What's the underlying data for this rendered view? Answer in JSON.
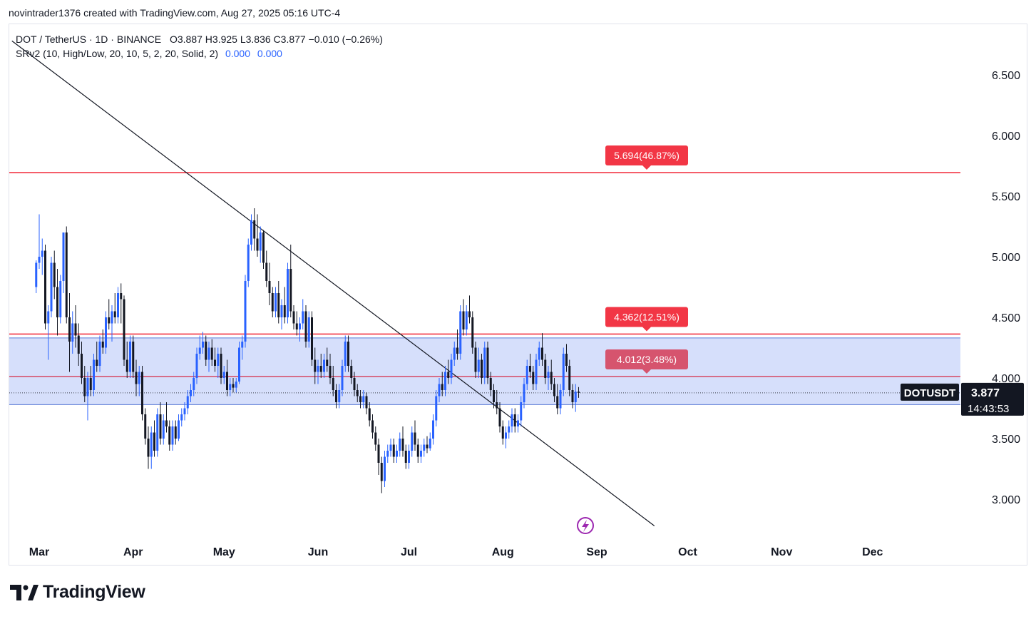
{
  "header": {
    "attribution": "novintrader1376 created with TradingView.com, Aug 27, 2025 05:16 UTC-4"
  },
  "legend": {
    "symbol_line": "DOT / TetherUS · 1D · BINANCE",
    "ohlc": "O3.887  H3.925  L3.836  C3.877  −0.010 (−0.26%)",
    "indicator": "SRv2 (10, High/Low, 20, 10, 5, 2, 20, Solid, 2)",
    "indicator_val1": "0.000",
    "indicator_val2": "0.000"
  },
  "brand": {
    "name": "TradingView"
  },
  "colors": {
    "up": "#2962ff",
    "down": "#131722",
    "resistance": "#f23645",
    "target_mid": "#d6546e",
    "zone_fill": "#d1dcfb",
    "zone_edge": "#5b7cd6",
    "trendline": "#131722",
    "price_tag": "#131722",
    "icon_purple": "#9c27b0"
  },
  "chart_data": {
    "type": "candlestick",
    "symbol": "DOTUSDT",
    "last_price": "3.877",
    "countdown": "14:43:53",
    "x_labels": [
      "Mar",
      "Apr",
      "May",
      "Jun",
      "Jul",
      "Aug",
      "Sep",
      "Oct",
      "Nov",
      "Dec"
    ],
    "y_ticks": [
      "3.000",
      "3.500",
      "4.000",
      "4.500",
      "5.000",
      "5.500",
      "6.000",
      "6.500"
    ],
    "ylim": [
      2.7,
      6.9
    ],
    "levels": [
      {
        "price": 5.694,
        "label": "5.694(46.87%)",
        "color": "#f23645"
      },
      {
        "price": 4.362,
        "label": "4.362(12.51%)",
        "color": "#f23645"
      },
      {
        "price": 4.012,
        "label": "4.012(3.48%)",
        "color": "#d6546e"
      }
    ],
    "zone": {
      "top": 4.33,
      "bottom": 3.78
    },
    "current_line": 3.877,
    "trendline": {
      "start": [
        "2025-02-20",
        6.78
      ],
      "end": [
        "2025-09-20",
        2.78
      ]
    },
    "candles": [
      [
        "2025-02-28",
        4.75,
        4.97,
        4.7,
        4.95
      ],
      [
        "2025-03-01",
        4.95,
        5.35,
        4.9,
        5.0
      ],
      [
        "2025-03-02",
        5.0,
        5.15,
        4.85,
        5.05
      ],
      [
        "2025-03-03",
        5.05,
        5.1,
        4.4,
        4.45
      ],
      [
        "2025-03-04",
        4.45,
        4.6,
        4.15,
        4.55
      ],
      [
        "2025-03-05",
        4.55,
        5.0,
        4.5,
        4.95
      ],
      [
        "2025-03-06",
        4.95,
        5.05,
        4.65,
        4.75
      ],
      [
        "2025-03-07",
        4.75,
        4.9,
        4.35,
        4.5
      ],
      [
        "2025-03-08",
        4.5,
        4.85,
        4.45,
        4.8
      ],
      [
        "2025-03-09",
        4.8,
        5.2,
        4.7,
        5.2
      ],
      [
        "2025-03-10",
        5.2,
        5.25,
        4.45,
        4.5
      ],
      [
        "2025-03-11",
        4.5,
        4.7,
        4.05,
        4.3
      ],
      [
        "2025-03-12",
        4.3,
        4.55,
        4.2,
        4.45
      ],
      [
        "2025-03-13",
        4.45,
        4.6,
        4.25,
        4.35
      ],
      [
        "2025-03-14",
        4.35,
        4.45,
        4.1,
        4.2
      ],
      [
        "2025-03-15",
        4.2,
        4.3,
        3.95,
        4.0
      ],
      [
        "2025-03-16",
        4.0,
        4.1,
        3.8,
        3.85
      ],
      [
        "2025-03-17",
        3.85,
        4.05,
        3.65,
        4.0
      ],
      [
        "2025-03-18",
        4.0,
        4.1,
        3.85,
        3.9
      ],
      [
        "2025-03-19",
        3.9,
        4.2,
        3.85,
        4.15
      ],
      [
        "2025-03-20",
        4.15,
        4.3,
        4.05,
        4.1
      ],
      [
        "2025-03-21",
        4.1,
        4.35,
        4.05,
        4.3
      ],
      [
        "2025-03-22",
        4.3,
        4.4,
        4.2,
        4.25
      ],
      [
        "2025-03-23",
        4.25,
        4.55,
        4.2,
        4.5
      ],
      [
        "2025-03-24",
        4.5,
        4.65,
        4.4,
        4.45
      ],
      [
        "2025-03-25",
        4.45,
        4.6,
        4.3,
        4.55
      ],
      [
        "2025-03-26",
        4.55,
        4.7,
        4.45,
        4.5
      ],
      [
        "2025-03-27",
        4.5,
        4.75,
        4.45,
        4.7
      ],
      [
        "2025-03-28",
        4.7,
        4.78,
        4.45,
        4.65
      ],
      [
        "2025-03-29",
        4.65,
        4.68,
        4.1,
        4.15
      ],
      [
        "2025-03-30",
        4.15,
        4.3,
        4.0,
        4.05
      ],
      [
        "2025-03-31",
        4.05,
        4.35,
        4.0,
        4.3
      ],
      [
        "2025-04-01",
        4.3,
        4.35,
        4.0,
        4.05
      ],
      [
        "2025-04-02",
        4.05,
        4.15,
        3.85,
        3.95
      ],
      [
        "2025-04-03",
        3.95,
        4.1,
        3.85,
        4.05
      ],
      [
        "2025-04-04",
        4.05,
        4.1,
        3.65,
        3.7
      ],
      [
        "2025-04-05",
        3.7,
        3.75,
        3.45,
        3.5
      ],
      [
        "2025-04-06",
        3.5,
        3.6,
        3.25,
        3.35
      ],
      [
        "2025-04-07",
        3.35,
        3.6,
        3.25,
        3.55
      ],
      [
        "2025-04-08",
        3.55,
        3.65,
        3.35,
        3.4
      ],
      [
        "2025-04-09",
        3.4,
        3.75,
        3.35,
        3.7
      ],
      [
        "2025-04-10",
        3.7,
        3.8,
        3.45,
        3.5
      ],
      [
        "2025-04-11",
        3.5,
        3.7,
        3.45,
        3.65
      ],
      [
        "2025-04-12",
        3.65,
        3.8,
        3.55,
        3.6
      ],
      [
        "2025-04-13",
        3.6,
        3.65,
        3.4,
        3.45
      ],
      [
        "2025-04-14",
        3.45,
        3.65,
        3.4,
        3.6
      ],
      [
        "2025-04-15",
        3.6,
        3.65,
        3.45,
        3.5
      ],
      [
        "2025-04-16",
        3.5,
        3.7,
        3.48,
        3.65
      ],
      [
        "2025-04-17",
        3.65,
        3.75,
        3.6,
        3.7
      ],
      [
        "2025-04-18",
        3.7,
        3.8,
        3.65,
        3.75
      ],
      [
        "2025-04-19",
        3.75,
        3.9,
        3.7,
        3.85
      ],
      [
        "2025-04-20",
        3.85,
        3.95,
        3.8,
        3.9
      ],
      [
        "2025-04-21",
        3.9,
        4.05,
        3.85,
        4.0
      ],
      [
        "2025-04-22",
        4.0,
        4.25,
        3.95,
        4.2
      ],
      [
        "2025-04-23",
        4.2,
        4.35,
        4.15,
        4.25
      ],
      [
        "2025-04-24",
        4.25,
        4.38,
        4.2,
        4.3
      ],
      [
        "2025-04-25",
        4.3,
        4.35,
        4.1,
        4.15
      ],
      [
        "2025-04-26",
        4.15,
        4.3,
        4.05,
        4.25
      ],
      [
        "2025-04-27",
        4.25,
        4.32,
        4.1,
        4.15
      ],
      [
        "2025-04-28",
        4.15,
        4.25,
        4.05,
        4.1
      ],
      [
        "2025-04-29",
        4.1,
        4.25,
        4.0,
        4.2
      ],
      [
        "2025-04-30",
        4.2,
        4.25,
        3.95,
        4.0
      ],
      [
        "2025-05-01",
        4.0,
        4.1,
        3.95,
        4.05
      ],
      [
        "2025-05-02",
        4.05,
        4.15,
        3.85,
        3.9
      ],
      [
        "2025-05-03",
        3.9,
        4.0,
        3.85,
        3.95
      ],
      [
        "2025-05-04",
        3.95,
        4.0,
        3.88,
        3.92
      ],
      [
        "2025-05-05",
        3.92,
        4.0,
        3.88,
        3.97
      ],
      [
        "2025-05-06",
        3.97,
        4.3,
        3.95,
        4.25
      ],
      [
        "2025-05-07",
        4.25,
        4.35,
        4.15,
        4.3
      ],
      [
        "2025-05-08",
        4.3,
        4.85,
        4.25,
        4.8
      ],
      [
        "2025-05-09",
        4.8,
        5.15,
        4.75,
        5.1
      ],
      [
        "2025-05-10",
        5.1,
        5.35,
        5.05,
        5.3
      ],
      [
        "2025-05-11",
        5.3,
        5.4,
        5.05,
        5.15
      ],
      [
        "2025-05-12",
        5.15,
        5.35,
        5.0,
        5.05
      ],
      [
        "2025-05-13",
        5.05,
        5.25,
        4.95,
        5.2
      ],
      [
        "2025-05-14",
        5.2,
        5.22,
        4.9,
        4.95
      ],
      [
        "2025-05-15",
        4.95,
        5.05,
        4.75,
        4.8
      ],
      [
        "2025-05-16",
        4.8,
        4.95,
        4.6,
        4.7
      ],
      [
        "2025-05-17",
        4.7,
        4.75,
        4.5,
        4.55
      ],
      [
        "2025-05-18",
        4.55,
        4.75,
        4.5,
        4.7
      ],
      [
        "2025-05-19",
        4.7,
        4.8,
        4.45,
        4.5
      ],
      [
        "2025-05-20",
        4.5,
        4.65,
        4.4,
        4.6
      ],
      [
        "2025-05-21",
        4.6,
        4.75,
        4.45,
        4.5
      ],
      [
        "2025-05-22",
        4.5,
        4.95,
        4.45,
        4.9
      ],
      [
        "2025-05-23",
        4.9,
        5.1,
        4.5,
        4.55
      ],
      [
        "2025-05-24",
        4.55,
        4.6,
        4.4,
        4.45
      ],
      [
        "2025-05-25",
        4.45,
        4.55,
        4.35,
        4.4
      ],
      [
        "2025-05-26",
        4.4,
        4.5,
        4.3,
        4.45
      ],
      [
        "2025-05-27",
        4.45,
        4.65,
        4.4,
        4.55
      ],
      [
        "2025-05-28",
        4.55,
        4.6,
        4.25,
        4.3
      ],
      [
        "2025-05-29",
        4.3,
        4.55,
        4.25,
        4.5
      ],
      [
        "2025-05-30",
        4.5,
        4.55,
        4.1,
        4.15
      ],
      [
        "2025-05-31",
        4.15,
        4.25,
        3.95,
        4.05
      ],
      [
        "2025-06-01",
        4.05,
        4.15,
        3.95,
        4.1
      ],
      [
        "2025-06-02",
        4.1,
        4.2,
        4.0,
        4.05
      ],
      [
        "2025-06-03",
        4.05,
        4.2,
        4.0,
        4.15
      ],
      [
        "2025-06-04",
        4.15,
        4.25,
        4.05,
        4.1
      ],
      [
        "2025-06-05",
        4.1,
        4.2,
        3.95,
        4.0
      ],
      [
        "2025-06-06",
        4.0,
        4.1,
        3.85,
        3.9
      ],
      [
        "2025-06-07",
        3.9,
        3.95,
        3.75,
        3.8
      ],
      [
        "2025-06-08",
        3.8,
        3.95,
        3.75,
        3.9
      ],
      [
        "2025-06-09",
        3.9,
        4.15,
        3.85,
        4.1
      ],
      [
        "2025-06-10",
        4.1,
        4.35,
        4.05,
        4.3
      ],
      [
        "2025-06-11",
        4.3,
        4.35,
        4.05,
        4.1
      ],
      [
        "2025-06-12",
        4.1,
        4.15,
        3.95,
        4.0
      ],
      [
        "2025-06-13",
        4.0,
        4.05,
        3.85,
        3.9
      ],
      [
        "2025-06-14",
        3.9,
        3.95,
        3.8,
        3.85
      ],
      [
        "2025-06-15",
        3.85,
        3.9,
        3.75,
        3.8
      ],
      [
        "2025-06-16",
        3.8,
        3.9,
        3.75,
        3.85
      ],
      [
        "2025-06-17",
        3.85,
        3.88,
        3.7,
        3.75
      ],
      [
        "2025-06-18",
        3.75,
        3.8,
        3.6,
        3.65
      ],
      [
        "2025-06-19",
        3.65,
        3.7,
        3.5,
        3.55
      ],
      [
        "2025-06-20",
        3.55,
        3.6,
        3.4,
        3.45
      ],
      [
        "2025-06-21",
        3.45,
        3.5,
        3.2,
        3.3
      ],
      [
        "2025-06-22",
        3.3,
        3.35,
        3.05,
        3.15
      ],
      [
        "2025-06-23",
        3.15,
        3.4,
        3.1,
        3.35
      ],
      [
        "2025-06-24",
        3.35,
        3.45,
        3.3,
        3.4
      ],
      [
        "2025-06-25",
        3.4,
        3.5,
        3.35,
        3.45
      ],
      [
        "2025-06-26",
        3.45,
        3.5,
        3.3,
        3.35
      ],
      [
        "2025-06-27",
        3.35,
        3.45,
        3.3,
        3.4
      ],
      [
        "2025-06-28",
        3.4,
        3.55,
        3.35,
        3.5
      ],
      [
        "2025-06-29",
        3.5,
        3.6,
        3.35,
        3.4
      ],
      [
        "2025-06-30",
        3.4,
        3.45,
        3.25,
        3.3
      ],
      [
        "2025-07-01",
        3.3,
        3.45,
        3.25,
        3.4
      ],
      [
        "2025-07-02",
        3.4,
        3.6,
        3.35,
        3.55
      ],
      [
        "2025-07-03",
        3.55,
        3.65,
        3.4,
        3.45
      ],
      [
        "2025-07-04",
        3.45,
        3.5,
        3.3,
        3.35
      ],
      [
        "2025-07-05",
        3.35,
        3.45,
        3.3,
        3.4
      ],
      [
        "2025-07-06",
        3.4,
        3.5,
        3.35,
        3.45
      ],
      [
        "2025-07-07",
        3.45,
        3.52,
        3.38,
        3.42
      ],
      [
        "2025-07-08",
        3.42,
        3.55,
        3.4,
        3.5
      ],
      [
        "2025-07-09",
        3.5,
        3.7,
        3.45,
        3.65
      ],
      [
        "2025-07-10",
        3.65,
        3.9,
        3.6,
        3.85
      ],
      [
        "2025-07-11",
        3.85,
        4.0,
        3.8,
        3.95
      ],
      [
        "2025-07-12",
        3.95,
        4.05,
        3.85,
        3.9
      ],
      [
        "2025-07-13",
        3.9,
        4.1,
        3.85,
        4.05
      ],
      [
        "2025-07-14",
        4.05,
        4.15,
        3.95,
        4.0
      ],
      [
        "2025-07-15",
        4.0,
        4.2,
        3.95,
        4.15
      ],
      [
        "2025-07-16",
        4.15,
        4.3,
        4.1,
        4.25
      ],
      [
        "2025-07-17",
        4.25,
        4.4,
        4.15,
        4.2
      ],
      [
        "2025-07-18",
        4.2,
        4.6,
        4.15,
        4.55
      ],
      [
        "2025-07-19",
        4.55,
        4.65,
        4.35,
        4.4
      ],
      [
        "2025-07-20",
        4.4,
        4.6,
        4.35,
        4.55
      ],
      [
        "2025-07-21",
        4.55,
        4.68,
        4.45,
        4.5
      ],
      [
        "2025-07-22",
        4.5,
        4.55,
        4.2,
        4.25
      ],
      [
        "2025-07-23",
        4.25,
        4.3,
        4.0,
        4.05
      ],
      [
        "2025-07-24",
        4.05,
        4.25,
        4.0,
        4.15
      ],
      [
        "2025-07-25",
        4.15,
        4.2,
        3.95,
        4.0
      ],
      [
        "2025-07-26",
        4.0,
        4.3,
        3.95,
        4.25
      ],
      [
        "2025-07-27",
        4.25,
        4.3,
        3.95,
        4.0
      ],
      [
        "2025-07-28",
        4.0,
        4.05,
        3.85,
        3.9
      ],
      [
        "2025-07-29",
        3.9,
        3.95,
        3.75,
        3.8
      ],
      [
        "2025-07-30",
        3.8,
        3.9,
        3.7,
        3.75
      ],
      [
        "2025-07-31",
        3.75,
        3.8,
        3.55,
        3.6
      ],
      [
        "2025-08-01",
        3.6,
        3.65,
        3.45,
        3.5
      ],
      [
        "2025-08-02",
        3.5,
        3.6,
        3.42,
        3.55
      ],
      [
        "2025-08-03",
        3.55,
        3.65,
        3.5,
        3.6
      ],
      [
        "2025-08-04",
        3.6,
        3.75,
        3.55,
        3.7
      ],
      [
        "2025-08-05",
        3.7,
        3.75,
        3.55,
        3.6
      ],
      [
        "2025-08-06",
        3.6,
        3.7,
        3.55,
        3.65
      ],
      [
        "2025-08-07",
        3.65,
        3.85,
        3.6,
        3.8
      ],
      [
        "2025-08-08",
        3.8,
        4.0,
        3.75,
        3.95
      ],
      [
        "2025-08-09",
        3.95,
        4.15,
        3.9,
        4.1
      ],
      [
        "2025-08-10",
        4.1,
        4.2,
        4.0,
        4.05
      ],
      [
        "2025-08-11",
        4.05,
        4.1,
        3.9,
        3.95
      ],
      [
        "2025-08-12",
        3.95,
        4.2,
        3.9,
        4.15
      ],
      [
        "2025-08-13",
        4.15,
        4.3,
        4.1,
        4.25
      ],
      [
        "2025-08-14",
        4.25,
        4.37,
        4.1,
        4.15
      ],
      [
        "2025-08-15",
        4.15,
        4.2,
        3.95,
        4.0
      ],
      [
        "2025-08-16",
        4.0,
        4.1,
        3.9,
        4.05
      ],
      [
        "2025-08-17",
        4.05,
        4.15,
        3.9,
        3.95
      ],
      [
        "2025-08-18",
        3.95,
        4.0,
        3.8,
        3.85
      ],
      [
        "2025-08-19",
        3.85,
        3.95,
        3.7,
        3.75
      ],
      [
        "2025-08-20",
        3.75,
        3.95,
        3.7,
        3.9
      ],
      [
        "2025-08-21",
        3.9,
        4.25,
        3.85,
        4.2
      ],
      [
        "2025-08-22",
        4.2,
        4.28,
        4.05,
        4.1
      ],
      [
        "2025-08-23",
        4.1,
        4.15,
        3.85,
        3.9
      ],
      [
        "2025-08-24",
        3.9,
        3.95,
        3.75,
        3.8
      ],
      [
        "2025-08-25",
        3.8,
        3.95,
        3.72,
        3.887
      ],
      [
        "2025-08-26",
        3.887,
        3.925,
        3.836,
        3.877
      ]
    ]
  }
}
